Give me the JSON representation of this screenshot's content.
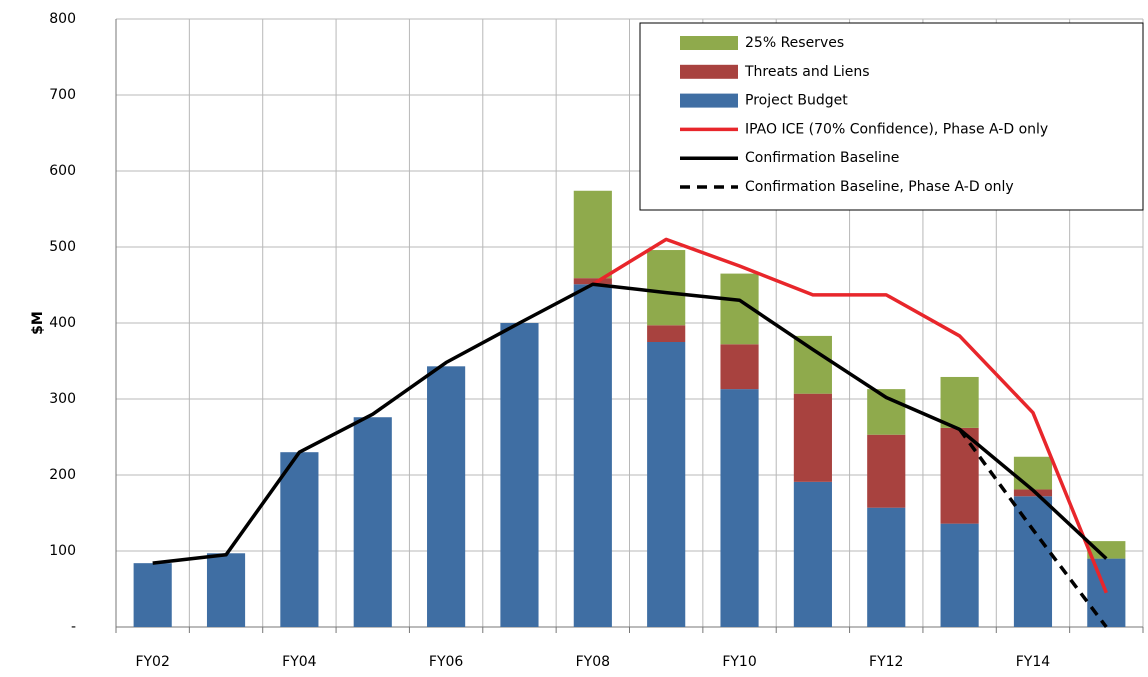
{
  "chart_data": {
    "type": "bar",
    "y_label": "$M",
    "categories": [
      "FY02",
      null,
      "FY04",
      null,
      "FY06",
      null,
      "FY08",
      null,
      "FY10",
      null,
      "FY12",
      null,
      "FY14",
      null
    ],
    "ylim": [
      0,
      800
    ],
    "yticks": [
      {
        "value": 0,
        "label": "-"
      },
      100,
      200,
      300,
      400,
      500,
      600,
      700,
      800
    ],
    "grid": true,
    "legend": "upper right",
    "series": [
      {
        "name": "25% Reserves",
        "kind": "bar",
        "color": "#8faa4c",
        "values": [
          0,
          0,
          0,
          0,
          0,
          0,
          115,
          99,
          93,
          76,
          60,
          67,
          43,
          23
        ]
      },
      {
        "name": "Threats and Liens",
        "kind": "bar",
        "color": "#a8423f",
        "values": [
          0,
          0,
          0,
          0,
          0,
          0,
          8,
          22,
          59,
          116,
          96,
          126,
          9,
          0
        ]
      },
      {
        "name": "Project Budget",
        "kind": "bar",
        "color": "#3f6ea3",
        "values": [
          84,
          97,
          230,
          276,
          343,
          400,
          451,
          375,
          313,
          191,
          157,
          136,
          172,
          90
        ]
      },
      {
        "name": "IPAO ICE (70% Confidence), Phase A-D only",
        "kind": "line",
        "color": "#e8262b",
        "values": [
          null,
          null,
          null,
          null,
          null,
          null,
          451,
          510,
          475,
          437,
          437,
          383,
          282,
          45
        ]
      },
      {
        "name": "Confirmation Baseline",
        "kind": "line",
        "color": "#000000",
        "values": [
          84,
          95,
          230,
          280,
          348,
          400,
          451,
          440,
          430,
          365,
          302,
          260,
          180,
          90
        ]
      },
      {
        "name": "Confirmation Baseline, Phase A-D only",
        "kind": "line",
        "dashed": true,
        "color": "#000000",
        "values": [
          null,
          null,
          null,
          null,
          null,
          null,
          null,
          null,
          null,
          null,
          null,
          260,
          128,
          0
        ]
      }
    ]
  }
}
